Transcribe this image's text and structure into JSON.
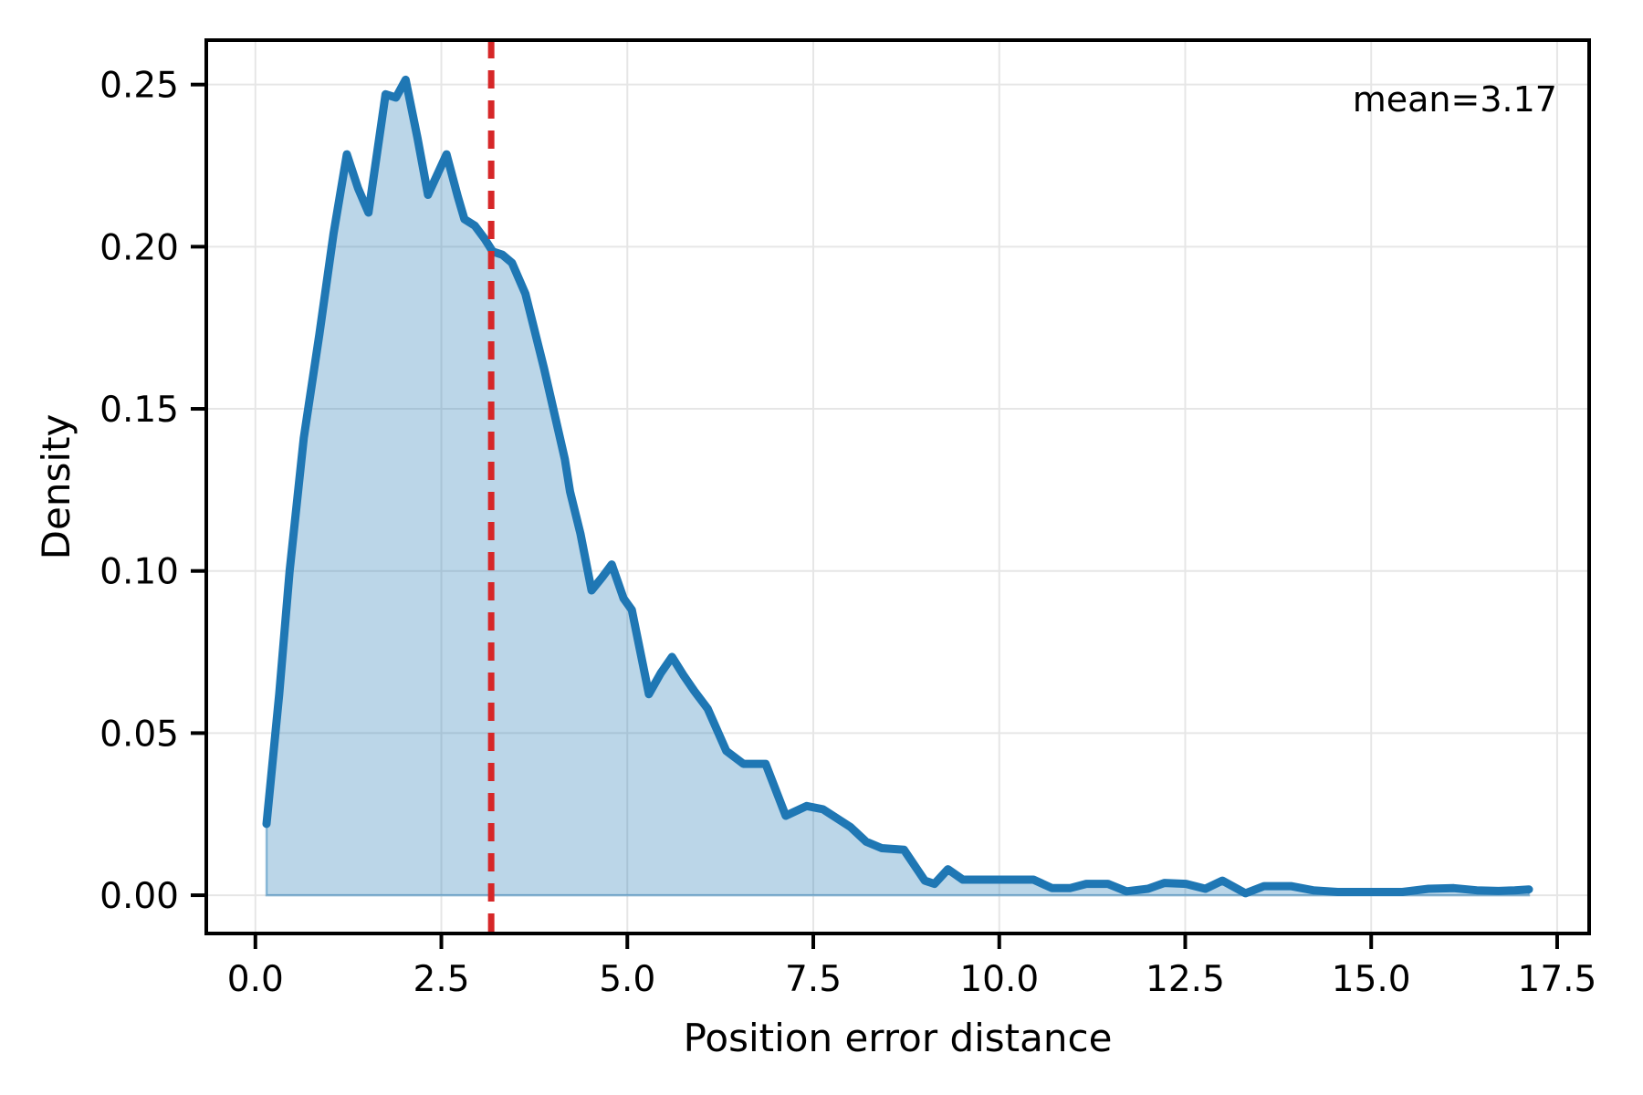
{
  "chart_data": {
    "type": "area",
    "title": "",
    "xlabel": "Position error distance",
    "ylabel": "Density",
    "grid": true,
    "legend": false,
    "xlim": [
      -0.66,
      17.93
    ],
    "ylim": [
      -0.0118,
      0.2637
    ],
    "x_ticks": [
      0.0,
      2.5,
      5.0,
      7.5,
      10.0,
      12.5,
      15.0,
      17.5
    ],
    "x_tick_labels": [
      "0.0",
      "2.5",
      "5.0",
      "7.5",
      "10.0",
      "12.5",
      "15.0",
      "17.5"
    ],
    "y_ticks": [
      0.0,
      0.05,
      0.1,
      0.15,
      0.2,
      0.25
    ],
    "y_tick_labels": [
      "0.00",
      "0.05",
      "0.10",
      "0.15",
      "0.20",
      "0.25"
    ],
    "colors": {
      "line": "#1f77b4",
      "fill": "rgba(31,119,180,0.30)",
      "fill_edge": "rgba(31,119,180,0.45)",
      "mean": "#d62728",
      "grid": "#e6e6e6",
      "spine": "#000000"
    },
    "mean_line": {
      "x": 3.17,
      "label": "mean=3.17",
      "color": "#d62728",
      "style": "dashed"
    },
    "series": [
      {
        "name": "position-error-density",
        "color": "#1f77b4",
        "points": [
          [
            0.15,
            0.022
          ],
          [
            0.32,
            0.062
          ],
          [
            0.46,
            0.1
          ],
          [
            0.65,
            0.141
          ],
          [
            0.86,
            0.173
          ],
          [
            1.05,
            0.204
          ],
          [
            1.23,
            0.2285
          ],
          [
            1.38,
            0.218
          ],
          [
            1.52,
            0.2105
          ],
          [
            1.75,
            0.247
          ],
          [
            1.89,
            0.246
          ],
          [
            2.02,
            0.2515
          ],
          [
            2.18,
            0.2335
          ],
          [
            2.32,
            0.216
          ],
          [
            2.57,
            0.2285
          ],
          [
            2.72,
            0.2155
          ],
          [
            2.81,
            0.2085
          ],
          [
            2.95,
            0.2065
          ],
          [
            3.08,
            0.2025
          ],
          [
            3.19,
            0.1985
          ],
          [
            3.32,
            0.1975
          ],
          [
            3.45,
            0.195
          ],
          [
            3.63,
            0.1855
          ],
          [
            3.88,
            0.1625
          ],
          [
            4.16,
            0.1345
          ],
          [
            4.23,
            0.1245
          ],
          [
            4.37,
            0.1115
          ],
          [
            4.52,
            0.094
          ],
          [
            4.66,
            0.098
          ],
          [
            4.79,
            0.102
          ],
          [
            4.95,
            0.0915
          ],
          [
            5.06,
            0.088
          ],
          [
            5.29,
            0.062
          ],
          [
            5.45,
            0.0685
          ],
          [
            5.6,
            0.0735
          ],
          [
            5.75,
            0.068
          ],
          [
            5.9,
            0.063
          ],
          [
            6.08,
            0.0575
          ],
          [
            6.33,
            0.0445
          ],
          [
            6.56,
            0.0405
          ],
          [
            6.86,
            0.0405
          ],
          [
            7.13,
            0.0245
          ],
          [
            7.41,
            0.0275
          ],
          [
            7.63,
            0.0265
          ],
          [
            8.0,
            0.021
          ],
          [
            8.21,
            0.0165
          ],
          [
            8.42,
            0.0145
          ],
          [
            8.72,
            0.014
          ],
          [
            9.0,
            0.0045
          ],
          [
            9.13,
            0.0035
          ],
          [
            9.31,
            0.008
          ],
          [
            9.51,
            0.0048
          ],
          [
            10.0,
            0.0048
          ],
          [
            10.46,
            0.0048
          ],
          [
            10.71,
            0.0022
          ],
          [
            10.95,
            0.0022
          ],
          [
            11.17,
            0.0035
          ],
          [
            11.46,
            0.0035
          ],
          [
            11.71,
            0.0012
          ],
          [
            12.0,
            0.002
          ],
          [
            12.22,
            0.0038
          ],
          [
            12.51,
            0.0035
          ],
          [
            12.77,
            0.002
          ],
          [
            13.0,
            0.0045
          ],
          [
            13.31,
            0.0006
          ],
          [
            13.56,
            0.0028
          ],
          [
            13.92,
            0.0028
          ],
          [
            14.22,
            0.0015
          ],
          [
            14.55,
            0.001
          ],
          [
            15.0,
            0.001
          ],
          [
            15.42,
            0.001
          ],
          [
            15.77,
            0.002
          ],
          [
            16.11,
            0.0022
          ],
          [
            16.42,
            0.0015
          ],
          [
            16.71,
            0.0013
          ],
          [
            16.93,
            0.0015
          ],
          [
            17.12,
            0.0018
          ]
        ]
      }
    ]
  }
}
